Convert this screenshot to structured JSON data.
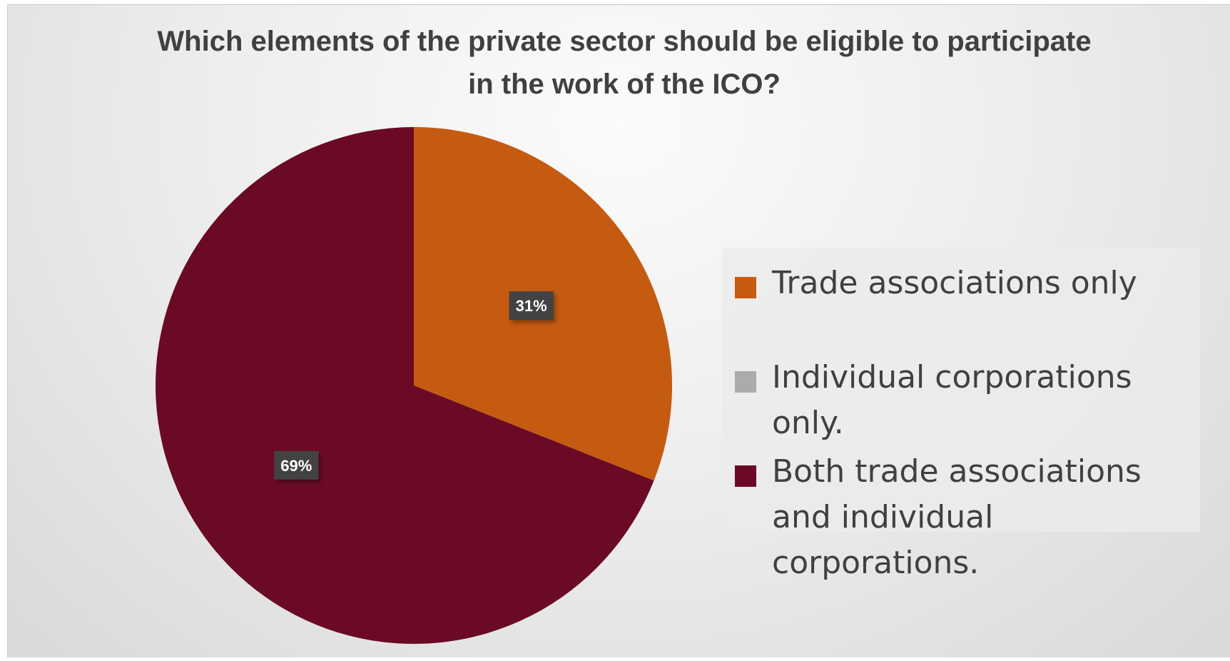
{
  "chart_data": {
    "type": "pie",
    "title": "Which elements of the private sector should be eligible to participate in the work of the ICO?",
    "slices": [
      {
        "label": "Trade associations only",
        "value": 31,
        "data_label": "31%",
        "color": "#C55A11"
      },
      {
        "label": "Individual corporations only.",
        "value": 0,
        "data_label": "",
        "color": "#ABABAB"
      },
      {
        "label": "Both trade associations and individual corporations.",
        "value": 69,
        "data_label": "69%",
        "color": "#6B0A25"
      }
    ],
    "legend_position": "right",
    "data_label_style": {
      "background": "#404040",
      "color": "#ffffff"
    }
  }
}
